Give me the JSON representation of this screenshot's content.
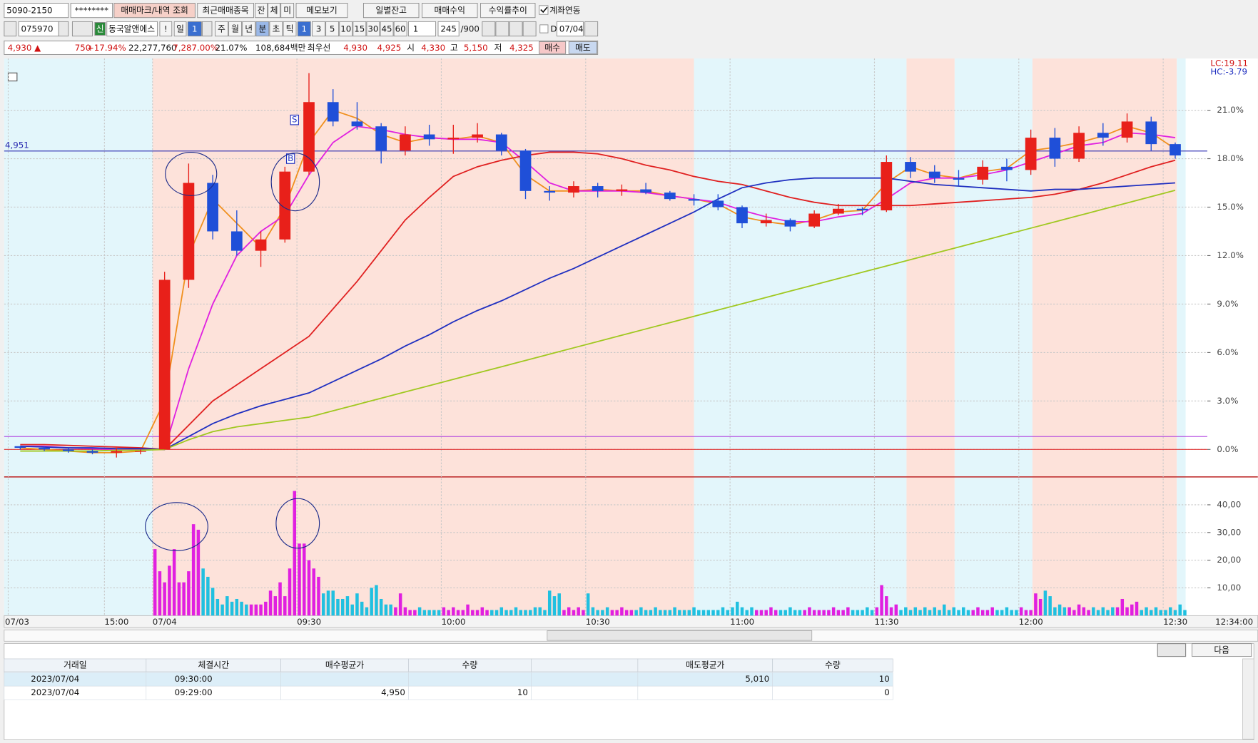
{
  "toolbar": {
    "account": "5090-2150",
    "password": "********",
    "buttons": [
      "매매마크/내역 조회",
      "최근매매종목",
      "잔",
      "체",
      "미",
      "메모보기",
      "일별잔고",
      "매매수익",
      "수익률추이"
    ],
    "sync": "계좌연동"
  },
  "stock_bar": {
    "code": "075970",
    "credit": "신",
    "name": "동국알앤에스",
    "alert": "!",
    "periods": [
      "일",
      "1",
      "주",
      "월",
      "년",
      "분",
      "초",
      "틱"
    ],
    "minutes": [
      "1",
      "3",
      "5",
      "10",
      "15",
      "30",
      "45",
      "60"
    ],
    "unit": "1",
    "count": "245",
    "max": "/900",
    "date_flag": "D",
    "date": "07/04"
  },
  "quote": {
    "price": "4,930 ▲",
    "change": "750",
    "rate": "+17.94%",
    "volume": "22,277,760",
    "volume_rate": "7,287.00%",
    "turnover": "21.07%",
    "amount": "108,684백만",
    "best": "최우선",
    "ask": "4,930",
    "bid": "4,925",
    "open_label": "시",
    "open": "4,330",
    "high_label": "고",
    "high": "5,150",
    "low_label": "저",
    "low": "4,325",
    "buy": "매수",
    "sell": "매도"
  },
  "chart_data": [
    {
      "type": "candlestick",
      "lc_label": "LC:19.11",
      "hc_label": "HC:-3.79",
      "current_time": "12:34:00",
      "categories": [
        "07/03",
        null,
        null,
        null,
        "15:00",
        null,
        "07/04",
        null,
        null,
        null,
        null,
        null,
        "09:30",
        null,
        null,
        null,
        null,
        null,
        "10:00",
        null,
        null,
        null,
        null,
        null,
        "10:30",
        null,
        null,
        null,
        null,
        null,
        "11:00",
        null,
        null,
        null,
        null,
        null,
        "11:30",
        null,
        null,
        null,
        null,
        null,
        "12:00",
        null,
        null,
        null,
        null,
        null,
        "12:30"
      ],
      "open": [
        0.2,
        0.1,
        0.0,
        -0.1,
        -0.2,
        -0.1,
        0,
        10.5,
        16.5,
        13.5,
        12.3,
        13,
        17.2,
        21.5,
        20.3,
        20,
        18.5,
        19.5,
        19.2,
        19.3,
        19.5,
        18.5,
        16,
        15.9,
        16.3,
        16,
        16.1,
        15.9,
        15.5,
        15.4,
        15,
        14,
        14.2,
        13.8,
        14.6,
        14.9,
        14.8,
        17.8,
        17.2,
        16.8,
        16.7,
        17.5,
        17.3,
        19.3,
        18,
        19.6,
        19.3,
        20.3,
        18.9
      ],
      "high": [
        0.2,
        0.2,
        0.1,
        0,
        0.1,
        0,
        11,
        17.7,
        17,
        14.8,
        13.5,
        17.5,
        23.3,
        22.3,
        21.5,
        20.2,
        20,
        20.1,
        20.1,
        20.2,
        19.6,
        18.6,
        16.3,
        16.6,
        16.5,
        16.4,
        16.5,
        16,
        15.8,
        15.8,
        15.1,
        14.6,
        14.3,
        14.8,
        15.2,
        15,
        18.2,
        18.1,
        17.6,
        17.3,
        17.9,
        18,
        19.8,
        19.9,
        20,
        20.2,
        20.8,
        20.6,
        19
      ],
      "low": [
        0,
        -0.1,
        -0.2,
        -0.3,
        -0.5,
        -0.3,
        0,
        10,
        13,
        12,
        11.3,
        12.8,
        17,
        20,
        19.8,
        17.7,
        18.2,
        18.8,
        18.3,
        19,
        18.2,
        15.5,
        15.4,
        15.6,
        15.6,
        15.7,
        15.8,
        15.4,
        15.1,
        14.8,
        13.7,
        13.8,
        13.5,
        13.7,
        14.5,
        14.5,
        14.7,
        16.8,
        16.5,
        16.3,
        16.4,
        16.6,
        17,
        17.5,
        17.8,
        18.8,
        19,
        18.5,
        18
      ],
      "close": [
        0.1,
        0,
        -0.1,
        -0.2,
        -0.1,
        -0.1,
        10.5,
        16.5,
        13.5,
        12.3,
        13,
        17.2,
        21.5,
        20.3,
        20,
        18.5,
        19.5,
        19.2,
        19.3,
        19.5,
        18.5,
        16,
        15.9,
        16.3,
        16,
        16.1,
        15.9,
        15.5,
        15.4,
        15,
        14,
        14.2,
        13.8,
        14.6,
        14.9,
        14.8,
        17.8,
        17.2,
        16.8,
        16.7,
        17.5,
        17.3,
        19.3,
        18,
        19.6,
        19.3,
        20.3,
        18.9,
        18.2
      ],
      "up_color": "#e8201a",
      "down_color": "#1f4fd8",
      "series": [
        {
          "color": "#f0901e",
          "values": [
            0.1,
            0,
            -0.1,
            -0.2,
            -0.2,
            -0.1,
            3,
            12,
            15.5,
            14,
            12.5,
            15,
            19,
            21,
            20.5,
            19.5,
            19,
            19.3,
            19.2,
            19.4,
            19,
            17,
            16,
            16,
            16.1,
            16,
            16,
            15.7,
            15.5,
            15.2,
            14.4,
            14.1,
            13.9,
            14.2,
            14.7,
            14.8,
            16.5,
            17.5,
            17,
            16.8,
            17.2,
            17.4,
            18.5,
            18.7,
            19,
            19.4,
            20,
            19.6,
            18.6
          ]
        },
        {
          "color": "#e020e0",
          "values": [
            0.2,
            0.2,
            0.1,
            0.05,
            0,
            0,
            0,
            5,
            9,
            12,
            13.5,
            14.5,
            17,
            19,
            20,
            19.8,
            19.5,
            19.3,
            19.2,
            19.2,
            19,
            17.8,
            16.5,
            16,
            16,
            16,
            15.9,
            15.7,
            15.5,
            15.3,
            14.8,
            14.4,
            14.1,
            14.1,
            14.4,
            14.6,
            15.5,
            16.5,
            16.8,
            16.8,
            17,
            17.3,
            17.8,
            18.3,
            18.8,
            19,
            19.6,
            19.5,
            19.3
          ]
        },
        {
          "color": "#e02020",
          "values": [
            0.3,
            0.3,
            0.25,
            0.2,
            0.15,
            0.1,
            0,
            1.5,
            3,
            4,
            5,
            6,
            7,
            8.7,
            10.4,
            12.3,
            14.2,
            15.6,
            16.9,
            17.5,
            17.9,
            18.2,
            18.4,
            18.4,
            18.3,
            18,
            17.6,
            17.3,
            16.9,
            16.6,
            16.4,
            16,
            15.6,
            15.3,
            15.1,
            15.1,
            15.1,
            15.1,
            15.2,
            15.3,
            15.4,
            15.5,
            15.6,
            15.8,
            16.1,
            16.5,
            17,
            17.5,
            17.9
          ]
        },
        {
          "color": "#2030c0",
          "values": [
            0.2,
            0.15,
            0.1,
            0.1,
            0.05,
            0.05,
            0,
            0.8,
            1.6,
            2.2,
            2.7,
            3.1,
            3.5,
            4.2,
            4.9,
            5.6,
            6.4,
            7.1,
            7.9,
            8.6,
            9.2,
            9.9,
            10.6,
            11.2,
            11.9,
            12.6,
            13.3,
            14,
            14.7,
            15.5,
            16.2,
            16.5,
            16.7,
            16.8,
            16.8,
            16.8,
            16.8,
            16.6,
            16.4,
            16.3,
            16.2,
            16.1,
            16,
            16.1,
            16.1,
            16.2,
            16.3,
            16.4,
            16.5
          ]
        },
        {
          "color": "#a0c820",
          "values": [
            -0.1,
            -0.1,
            -0.1,
            -0.1,
            -0.05,
            -0.05,
            0,
            0.6,
            1.1,
            1.4,
            1.6,
            1.8,
            2,
            2.39,
            2.78,
            3.17,
            3.56,
            3.95,
            4.34,
            4.73,
            5.12,
            5.51,
            5.9,
            6.29,
            6.68,
            7.07,
            7.46,
            7.85,
            8.24,
            8.63,
            9.02,
            9.41,
            9.8,
            10.19,
            10.58,
            10.97,
            11.36,
            11.75,
            12.14,
            12.53,
            12.92,
            13.31,
            13.7,
            14.09,
            14.48,
            14.87,
            15.26,
            15.65,
            16.04
          ]
        }
      ],
      "hlines": [
        {
          "value": 18.47,
          "label": "4,951",
          "color": "#2a2ab0"
        },
        {
          "value": 0.8,
          "color": "#b040e0"
        },
        {
          "value": 0,
          "color": "#e03030"
        }
      ],
      "markers": [
        {
          "label": "S",
          "value": 20.4
        },
        {
          "label": "B",
          "value": 18.0
        }
      ],
      "ylim": [
        -1.6,
        24.2
      ],
      "yticks": [
        {
          "value": 0,
          "label": "0.0%"
        },
        {
          "value": 3,
          "label": "3.0%"
        },
        {
          "value": 6,
          "label": "6.0%"
        },
        {
          "value": 9,
          "label": "9.0%"
        },
        {
          "value": 12,
          "label": "12.0%"
        },
        {
          "value": 15,
          "label": "15.0%"
        },
        {
          "value": 18,
          "label": "18.0%"
        },
        {
          "value": 21,
          "label": "21.0%"
        }
      ],
      "grid": true
    },
    {
      "type": "bar",
      "up_color": "#e020e0",
      "down_color": "#20c0e0",
      "values": [
        24,
        16,
        12,
        18,
        24,
        12,
        12,
        16,
        33,
        31,
        17,
        14,
        10,
        6,
        4,
        7,
        5,
        6,
        5,
        4,
        4,
        4,
        4,
        5,
        9,
        7,
        12,
        7,
        17,
        45,
        26,
        26,
        20,
        17,
        14,
        8,
        9,
        9,
        6,
        6,
        7,
        4,
        8,
        5,
        3,
        10,
        11,
        6,
        4,
        4,
        3,
        8,
        3,
        2,
        2,
        3,
        2,
        2,
        2,
        2,
        3,
        2,
        3,
        2,
        2,
        4,
        2,
        2,
        3,
        2,
        2,
        2,
        3,
        2,
        2,
        3,
        2,
        2,
        2,
        3,
        3,
        2,
        9,
        7,
        8,
        2,
        3,
        2,
        3,
        2,
        8,
        3,
        2,
        2,
        3,
        2,
        2,
        3,
        2,
        2,
        2,
        3,
        2,
        2,
        3,
        2,
        2,
        2,
        3,
        2,
        2,
        2,
        3,
        2,
        2,
        2,
        2,
        2,
        3,
        2,
        3,
        5,
        3,
        2,
        3,
        2,
        2,
        2,
        3,
        2,
        2,
        2,
        3,
        2,
        2,
        2,
        3,
        2,
        2,
        2,
        2,
        3,
        2,
        2,
        3,
        2,
        2,
        2,
        3,
        2,
        3,
        11,
        7,
        3,
        4,
        2,
        3,
        2,
        3,
        2,
        3,
        2,
        3,
        2,
        4,
        2,
        3,
        2,
        3,
        2,
        2,
        3,
        2,
        2,
        3,
        2,
        2,
        3,
        2,
        2,
        3,
        2,
        2,
        8,
        6,
        9,
        7,
        3,
        4,
        3,
        3,
        2,
        4,
        3,
        2,
        3,
        2,
        3,
        2,
        3,
        3,
        6,
        3,
        4,
        5,
        2,
        3,
        2,
        3,
        2,
        2,
        3,
        2,
        4,
        2
      ],
      "ylim": [
        0,
        49.5
      ],
      "yticks": [
        {
          "value": 10,
          "label": "10,00"
        },
        {
          "value": 20,
          "label": "20,00"
        },
        {
          "value": 30,
          "label": "30,00"
        },
        {
          "value": 40,
          "label": "40,00"
        }
      ],
      "grid": true
    }
  ],
  "nav": {
    "next": "다음"
  },
  "table": {
    "headers": [
      "거래일",
      "체결시간",
      "매수평균가",
      "수량",
      null,
      "매도평균가",
      "수량"
    ],
    "rows": [
      [
        "2023/07/04",
        "09:30:00",
        null,
        null,
        null,
        "5,010",
        "10"
      ],
      [
        "2023/07/04",
        "09:29:00",
        "4,950",
        "10",
        null,
        null,
        "0"
      ]
    ]
  }
}
